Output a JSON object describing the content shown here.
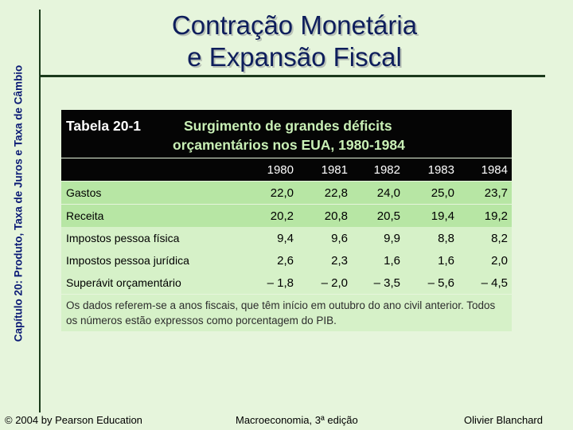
{
  "side_title": "Capítulo 20: Produto, Taxa de Juros e Taxa de Câmbio",
  "title": {
    "line1": "Contração Monetária",
    "line2": "e Expansão Fiscal"
  },
  "table": {
    "label": "Tabela 20-1",
    "caption_line1": "Surgimento de grandes déficits",
    "caption_line2": "orçamentários nos EUA, 1980-1984",
    "years": [
      "1980",
      "1981",
      "1982",
      "1983",
      "1984"
    ],
    "rows": [
      {
        "label": "Gastos",
        "values": [
          "22,0",
          "22,8",
          "24,0",
          "25,0",
          "23,7"
        ]
      },
      {
        "label": "Receita",
        "values": [
          "20,2",
          "20,8",
          "20,5",
          "19,4",
          "19,2"
        ]
      },
      {
        "label": "Impostos pessoa física",
        "values": [
          "9,4",
          "9,6",
          "9,9",
          "8,8",
          "8,2"
        ]
      },
      {
        "label": "Impostos pessoa jurídica",
        "values": [
          "2,6",
          "2,3",
          "1,6",
          "1,6",
          "2,0"
        ]
      },
      {
        "label": "Superávit orçamentário",
        "values": [
          "– 1,8",
          "– 2,0",
          "– 3,5",
          "– 5,6",
          "– 4,5"
        ]
      }
    ],
    "footnote": "Os dados referem-se a anos fiscais, que têm início em outubro do ano civil anterior. Todos os números estão expressos como porcentagem do PIB."
  },
  "footer": {
    "left": "© 2004 by Pearson Education",
    "center": "Macroeconomia, 3ª edição",
    "right": "Olivier Blanchard"
  }
}
